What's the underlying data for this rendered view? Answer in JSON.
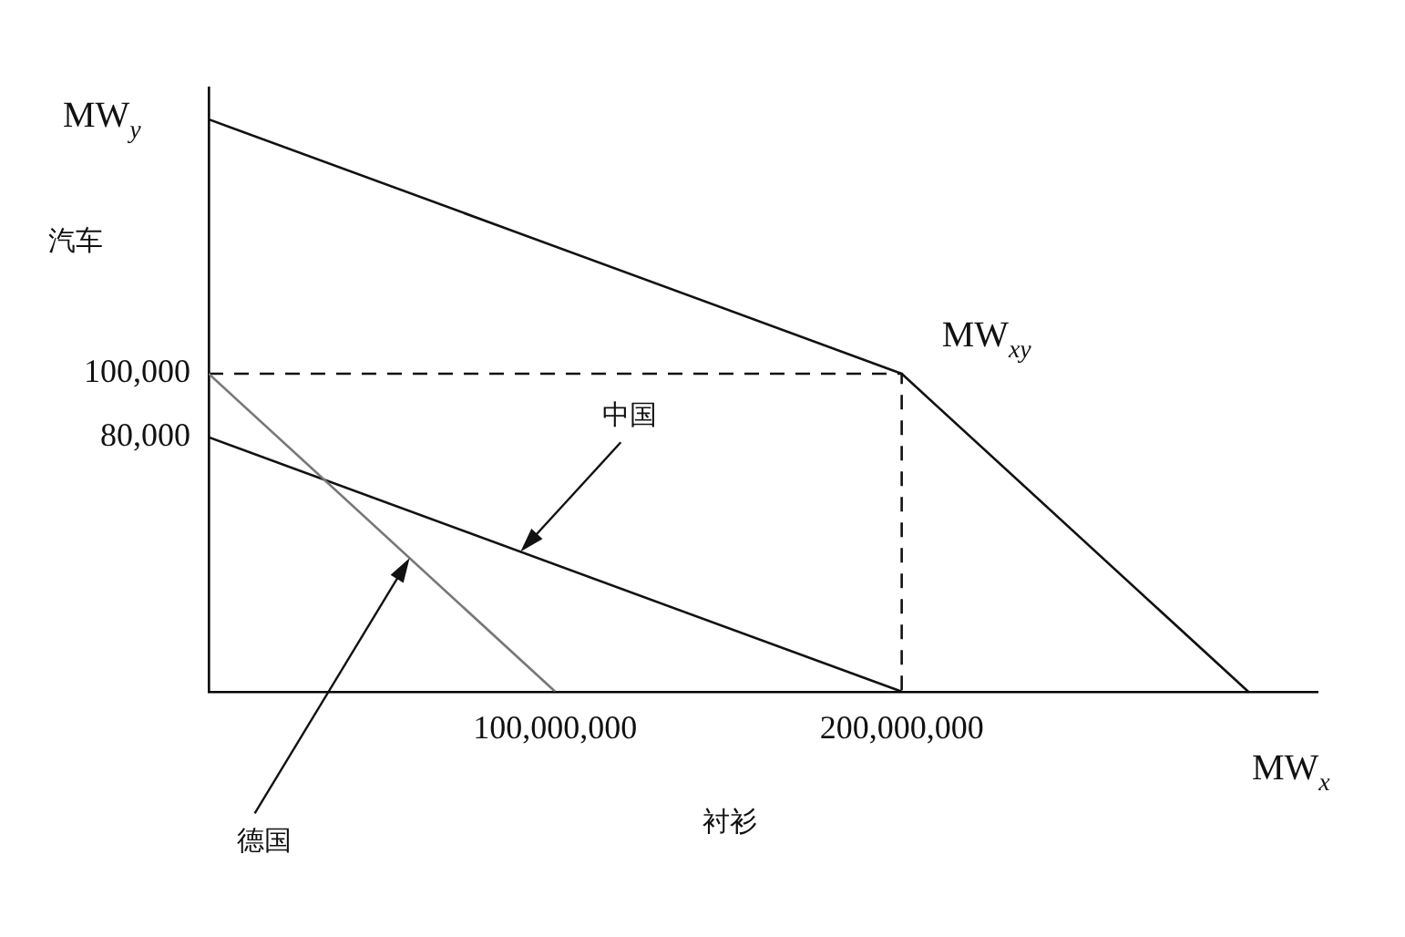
{
  "chart_data": {
    "type": "line",
    "xlabel": "衬衫",
    "ylabel": "汽车",
    "xlim": [
      0,
      320000000
    ],
    "ylim": [
      0,
      190000
    ],
    "xticks": [
      {
        "value": 100000000,
        "label": "100,000,000"
      },
      {
        "value": 200000000,
        "label": "200,000,000"
      }
    ],
    "yticks": [
      {
        "value": 80000,
        "label": "80,000"
      },
      {
        "value": 100000,
        "label": "100,000"
      }
    ],
    "series": [
      {
        "color": "#777777",
        "x": [
          0,
          100000000
        ],
        "values": [
          100000,
          0
        ]
      },
      {
        "color": "#111111",
        "x": [
          0,
          200000000
        ],
        "values": [
          80000,
          0
        ]
      },
      {
        "color": "#111111",
        "x": [
          0,
          200000000,
          300000000
        ],
        "values": [
          180000,
          100000,
          0
        ]
      },
      {
        "color": "#111111",
        "x": [
          0,
          200000000,
          200000000
        ],
        "values": [
          100000,
          100000,
          0
        ],
        "line_style": "dashed"
      }
    ],
    "annotations": [
      {
        "text": "MW$_{y}$",
        "x": 0,
        "y": 180000
      },
      {
        "text": "MW$_{xy}$",
        "x": 200000000,
        "y": 100000
      },
      {
        "text": "中国",
        "x": 90000000,
        "y": 44000
      },
      {
        "text": "德国",
        "x": 58000000,
        "y": 42000
      },
      {
        "text": "MW$_{x}$",
        "x": 300000000,
        "y": 0
      }
    ],
    "grid": false,
    "legend": false,
    "marker": "none"
  }
}
